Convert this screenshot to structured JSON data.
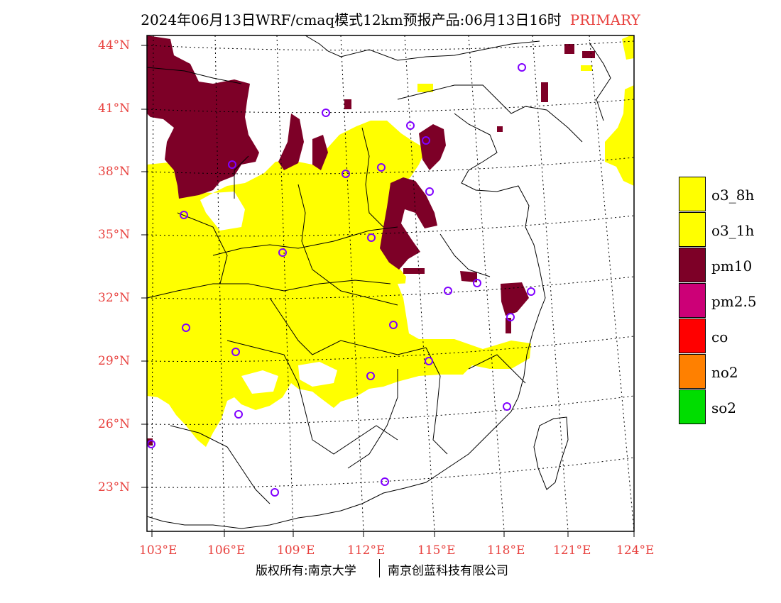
{
  "title": {
    "main": "2024年06月13日WRF/cmaq模式12km预报产品:06月13日16时",
    "tag": "PRIMARY"
  },
  "axes": {
    "lat_labels": [
      "44°N",
      "41°N",
      "38°N",
      "35°N",
      "32°N",
      "29°N",
      "26°N",
      "23°N"
    ],
    "lon_labels": [
      "103°E",
      "106°E",
      "109°E",
      "112°E",
      "115°E",
      "118°E",
      "121°E",
      "124°E"
    ]
  },
  "legend": [
    {
      "label": "o3_8h",
      "color": "#ffff00"
    },
    {
      "label": "o3_1h",
      "color": "#ffff00"
    },
    {
      "label": "pm10",
      "color": "#7d0027"
    },
    {
      "label": "pm2.5",
      "color": "#cc0077"
    },
    {
      "label": "co",
      "color": "#ff0000"
    },
    {
      "label": "no2",
      "color": "#ff8000"
    },
    {
      "label": "so2",
      "color": "#00dd00"
    }
  ],
  "footer": {
    "left": "版权所有:南京大学",
    "right": "南京创蓝科技有限公司"
  },
  "colors": {
    "axis_text": "#e8423f",
    "station_marker": "#8000ff"
  }
}
